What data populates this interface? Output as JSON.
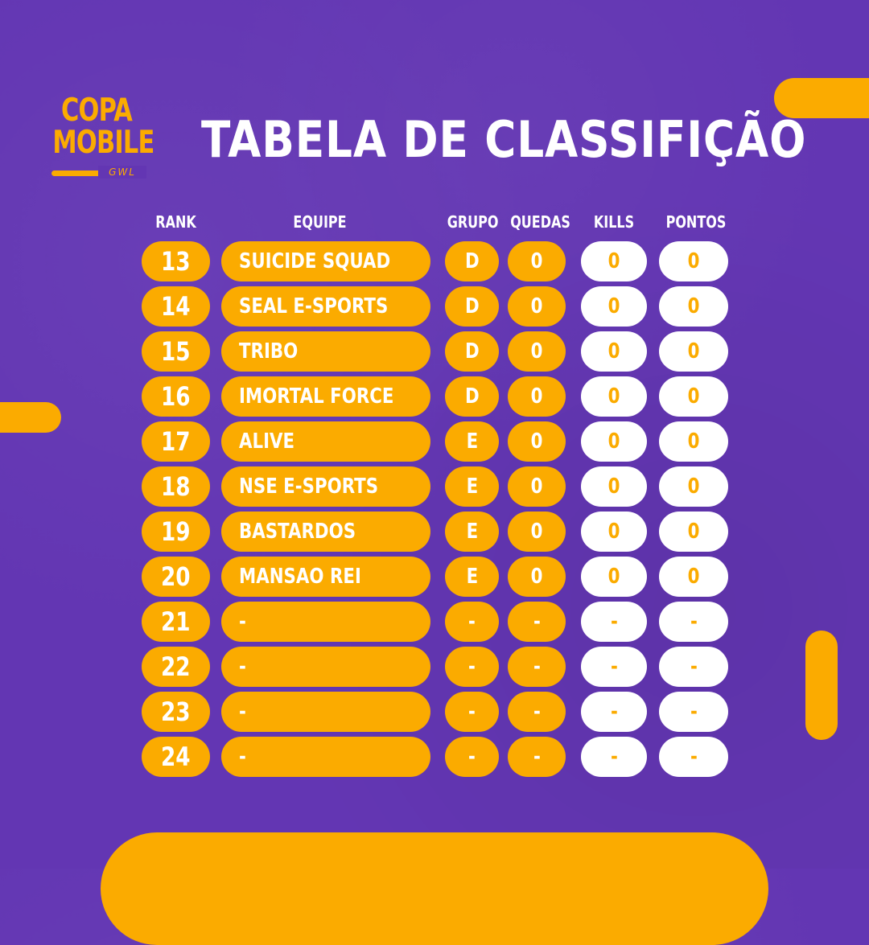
{
  "logo": {
    "line1": "COPA",
    "line2": "MOBILE",
    "mark": "GWL"
  },
  "title": "TABELA DE CLASSIFIÇÃO",
  "headers": {
    "rank": "RANK",
    "team": "EQUIPE",
    "group": "GRUPO",
    "falls": "QUEDAS",
    "kills": "KILLS",
    "points": "PONTOS"
  },
  "rows": [
    {
      "rank": "13",
      "team": "SUICIDE SQUAD",
      "group": "D",
      "falls": "0",
      "kills": "0",
      "points": "0"
    },
    {
      "rank": "14",
      "team": "SEAL E-SPORTS",
      "group": "D",
      "falls": "0",
      "kills": "0",
      "points": "0"
    },
    {
      "rank": "15",
      "team": "TRIBO",
      "group": "D",
      "falls": "0",
      "kills": "0",
      "points": "0"
    },
    {
      "rank": "16",
      "team": "IMORTAL FORCE",
      "group": "D",
      "falls": "0",
      "kills": "0",
      "points": "0"
    },
    {
      "rank": "17",
      "team": "ALIVE",
      "group": "E",
      "falls": "0",
      "kills": "0",
      "points": "0"
    },
    {
      "rank": "18",
      "team": "NSE E-SPORTS",
      "group": "E",
      "falls": "0",
      "kills": "0",
      "points": "0"
    },
    {
      "rank": "19",
      "team": "BASTARDOS",
      "group": "E",
      "falls": "0",
      "kills": "0",
      "points": "0"
    },
    {
      "rank": "20",
      "team": "MANSAO REI",
      "group": "E",
      "falls": "0",
      "kills": "0",
      "points": "0"
    },
    {
      "rank": "21",
      "team": "-",
      "group": "-",
      "falls": "-",
      "kills": "-",
      "points": "-"
    },
    {
      "rank": "22",
      "team": "-",
      "group": "-",
      "falls": "-",
      "kills": "-",
      "points": "-"
    },
    {
      "rank": "23",
      "team": "-",
      "group": "-",
      "falls": "-",
      "kills": "-",
      "points": "-"
    },
    {
      "rank": "24",
      "team": "-",
      "group": "-",
      "falls": "-",
      "kills": "-",
      "points": "-"
    }
  ],
  "colors": {
    "background": "#6336b3",
    "accent": "#fbab00",
    "light": "#ffffff"
  }
}
